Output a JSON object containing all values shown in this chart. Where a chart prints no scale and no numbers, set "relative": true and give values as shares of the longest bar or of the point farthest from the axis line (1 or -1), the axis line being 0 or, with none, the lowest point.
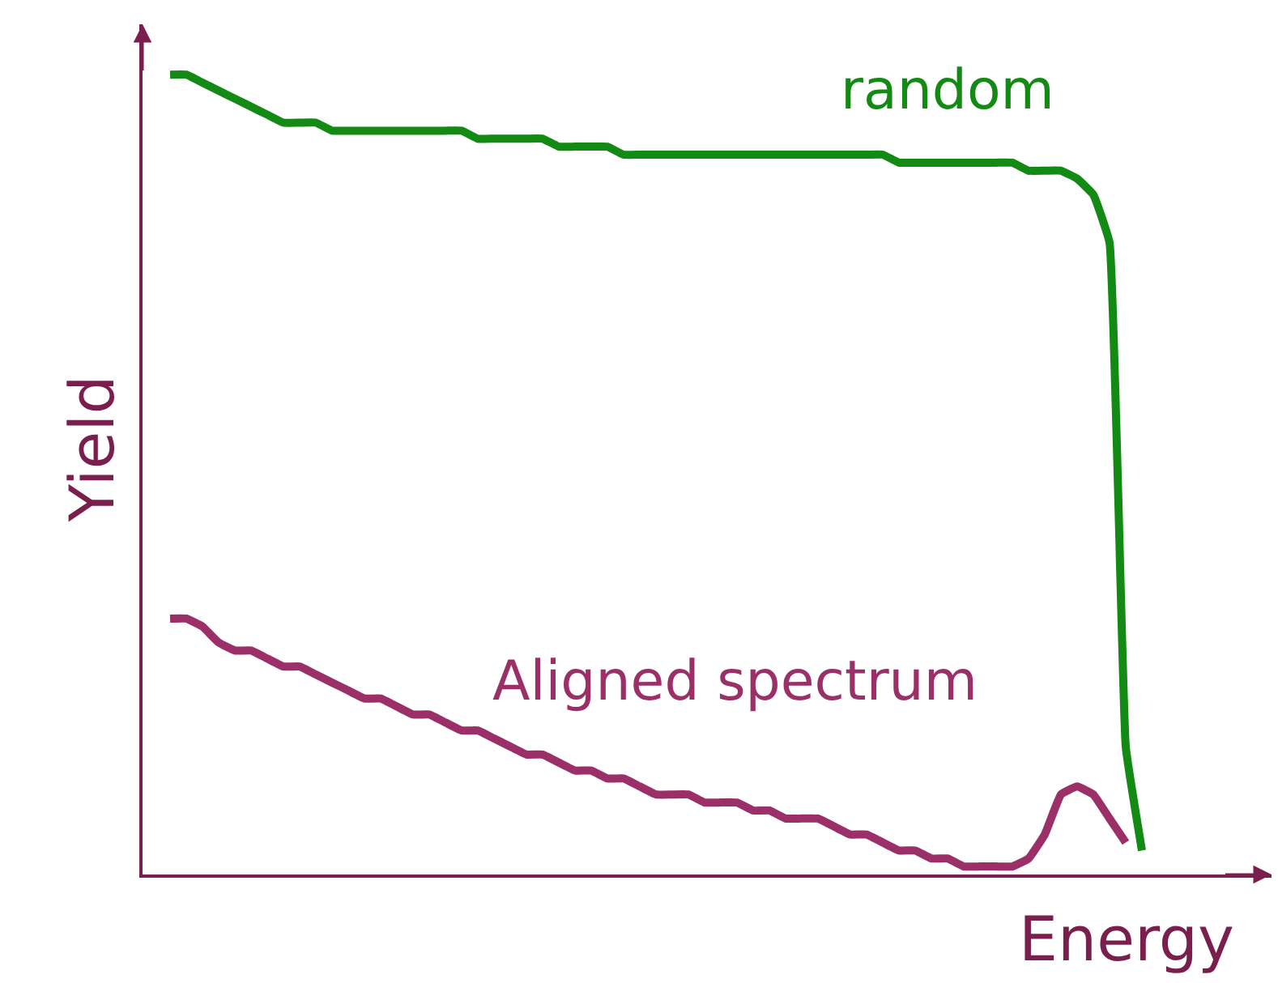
{
  "chart_data": {
    "type": "line",
    "relative": true,
    "xlabel": "Energy",
    "ylabel": "Yield",
    "categories": [
      null,
      null,
      null,
      null,
      null,
      null,
      null,
      null,
      null,
      null,
      null,
      null,
      null,
      null,
      null,
      null,
      null,
      null,
      null,
      null,
      null,
      null,
      null,
      null,
      null,
      null,
      null,
      null,
      null,
      null,
      null,
      null,
      null,
      null,
      null,
      null,
      null,
      null,
      null,
      null,
      null,
      null,
      null,
      null,
      null,
      null,
      null,
      null,
      null,
      null,
      null,
      null,
      null,
      null,
      null,
      null,
      null,
      null,
      null,
      null,
      null
    ],
    "series": [
      {
        "name": "random",
        "color": "#138a13",
        "values": [
          1.0,
          1.0,
          0.99,
          0.98,
          0.97,
          0.96,
          0.95,
          0.94,
          0.94,
          0.94,
          0.93,
          0.93,
          0.93,
          0.93,
          0.93,
          0.93,
          0.93,
          0.93,
          0.93,
          0.92,
          0.92,
          0.92,
          0.92,
          0.92,
          0.91,
          0.91,
          0.91,
          0.91,
          0.9,
          0.9,
          0.9,
          0.9,
          0.9,
          0.9,
          0.9,
          0.9,
          0.9,
          0.9,
          0.9,
          0.9,
          0.9,
          0.9,
          0.9,
          0.9,
          0.9,
          0.89,
          0.89,
          0.89,
          0.89,
          0.89,
          0.89,
          0.89,
          0.89,
          0.88,
          0.88,
          0.88,
          0.87,
          0.85,
          0.79,
          0.16,
          0.03
        ]
      },
      {
        "name": "Aligned spectrum",
        "color": "#9b3068",
        "values": [
          0.32,
          0.32,
          0.31,
          0.29,
          0.28,
          0.28,
          0.27,
          0.26,
          0.26,
          0.25,
          0.24,
          0.23,
          0.22,
          0.22,
          0.21,
          0.2,
          0.2,
          0.19,
          0.18,
          0.18,
          0.17,
          0.16,
          0.15,
          0.15,
          0.14,
          0.13,
          0.13,
          0.12,
          0.12,
          0.11,
          0.1,
          0.1,
          0.1,
          0.09,
          0.09,
          0.09,
          0.08,
          0.08,
          0.07,
          0.07,
          0.07,
          0.06,
          0.05,
          0.05,
          0.04,
          0.03,
          0.03,
          0.02,
          0.02,
          0.01,
          0.01,
          0.01,
          0.01,
          0.02,
          0.05,
          0.1,
          0.11,
          0.1,
          0.07,
          0.04,
          null
        ]
      }
    ]
  }
}
